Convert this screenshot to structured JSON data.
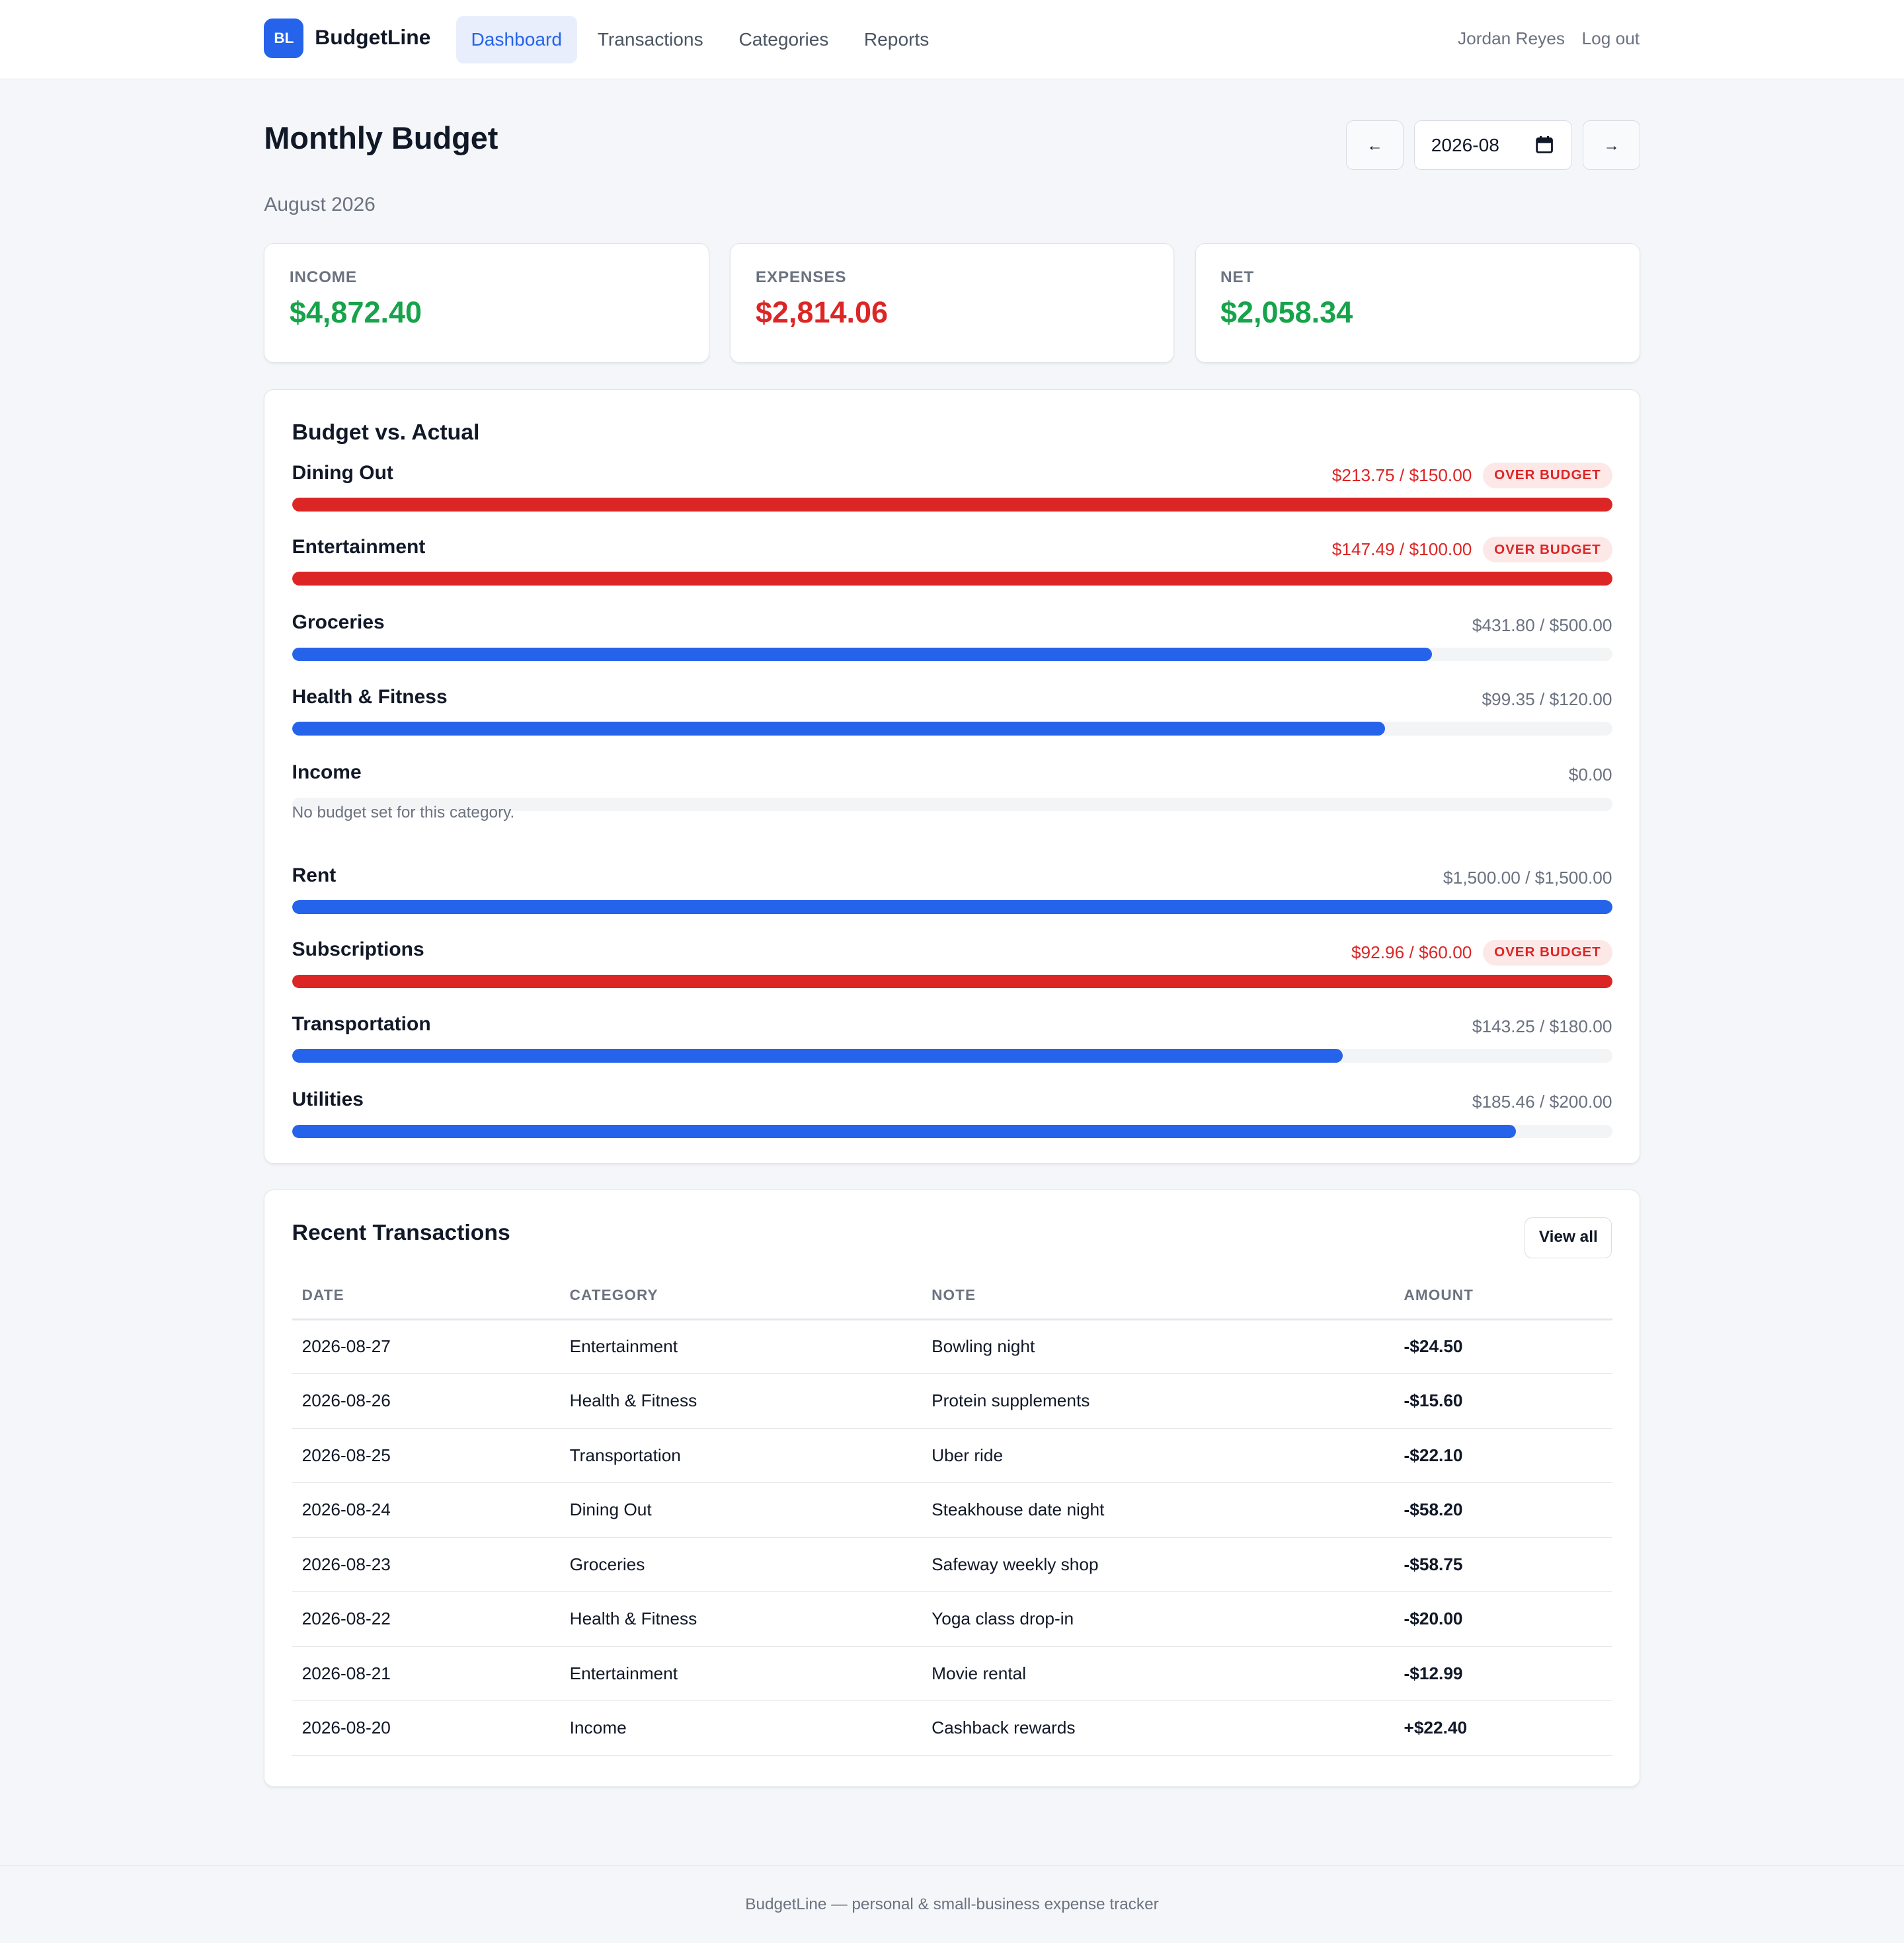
{
  "app": {
    "logo_text": "BL",
    "name": "BudgetLine"
  },
  "nav": {
    "links": [
      {
        "label": "Dashboard",
        "active": true
      },
      {
        "label": "Transactions",
        "active": false
      },
      {
        "label": "Categories",
        "active": false
      },
      {
        "label": "Reports",
        "active": false
      }
    ],
    "user_name": "Jordan Reyes",
    "logout_label": "Log out"
  },
  "header": {
    "title": "Monthly Budget",
    "subtitle": "August 2026",
    "prev_label": "←",
    "next_label": "→",
    "month_value": "2026-08"
  },
  "summary": [
    {
      "label": "INCOME",
      "value": "$4,872.40",
      "color": "#16a34a"
    },
    {
      "label": "EXPENSES",
      "value": "$2,814.06",
      "color": "#dc2626"
    },
    {
      "label": "NET",
      "value": "$2,058.34",
      "color": "#16a34a"
    }
  ],
  "budget": {
    "title": "Budget vs. Actual",
    "over_label": "OVER BUDGET",
    "no_budget_note": "No budget set for this category.",
    "rows": [
      {
        "name": "Dining Out",
        "amount": "$213.75 / $150.00",
        "spent": 213.75,
        "budget": 150.0,
        "over": true
      },
      {
        "name": "Entertainment",
        "amount": "$147.49 / $100.00",
        "spent": 147.49,
        "budget": 100.0,
        "over": true
      },
      {
        "name": "Groceries",
        "amount": "$431.80 / $500.00",
        "spent": 431.8,
        "budget": 500.0,
        "over": false
      },
      {
        "name": "Health & Fitness",
        "amount": "$99.35 / $120.00",
        "spent": 99.35,
        "budget": 120.0,
        "over": false
      },
      {
        "name": "Income",
        "amount": "$0.00",
        "spent": 0,
        "budget": null,
        "over": false
      },
      {
        "name": "Rent",
        "amount": "$1,500.00 / $1,500.00",
        "spent": 1500.0,
        "budget": 1500.0,
        "over": false
      },
      {
        "name": "Subscriptions",
        "amount": "$92.96 / $60.00",
        "spent": 92.96,
        "budget": 60.0,
        "over": true
      },
      {
        "name": "Transportation",
        "amount": "$143.25 / $180.00",
        "spent": 143.25,
        "budget": 180.0,
        "over": false
      },
      {
        "name": "Utilities",
        "amount": "$185.46 / $200.00",
        "spent": 185.46,
        "budget": 200.0,
        "over": false
      }
    ]
  },
  "transactions": {
    "title": "Recent Transactions",
    "view_all_label": "View all",
    "columns": [
      "DATE",
      "CATEGORY",
      "NOTE",
      "AMOUNT"
    ],
    "rows": [
      {
        "date": "2026-08-27",
        "category": "Entertainment",
        "note": "Bowling night",
        "amount": "-$24.50",
        "kind": "neg"
      },
      {
        "date": "2026-08-26",
        "category": "Health & Fitness",
        "note": "Protein supplements",
        "amount": "-$15.60",
        "kind": "neg"
      },
      {
        "date": "2026-08-25",
        "category": "Transportation",
        "note": "Uber ride",
        "amount": "-$22.10",
        "kind": "neg"
      },
      {
        "date": "2026-08-24",
        "category": "Dining Out",
        "note": "Steakhouse date night",
        "amount": "-$58.20",
        "kind": "neg"
      },
      {
        "date": "2026-08-23",
        "category": "Groceries",
        "note": "Safeway weekly shop",
        "amount": "-$58.75",
        "kind": "neg"
      },
      {
        "date": "2026-08-22",
        "category": "Health & Fitness",
        "note": "Yoga class drop-in",
        "amount": "-$20.00",
        "kind": "neg"
      },
      {
        "date": "2026-08-21",
        "category": "Entertainment",
        "note": "Movie rental",
        "amount": "-$12.99",
        "kind": "neg"
      },
      {
        "date": "2026-08-20",
        "category": "Income",
        "note": "Cashback rewards",
        "amount": "+$22.40",
        "kind": "pos"
      }
    ]
  },
  "footer": {
    "text": "BudgetLine — personal & small-business expense tracker"
  },
  "icons": {
    "calendar": "calendar-icon",
    "prev": "arrow-left-icon",
    "next": "arrow-right-icon"
  }
}
